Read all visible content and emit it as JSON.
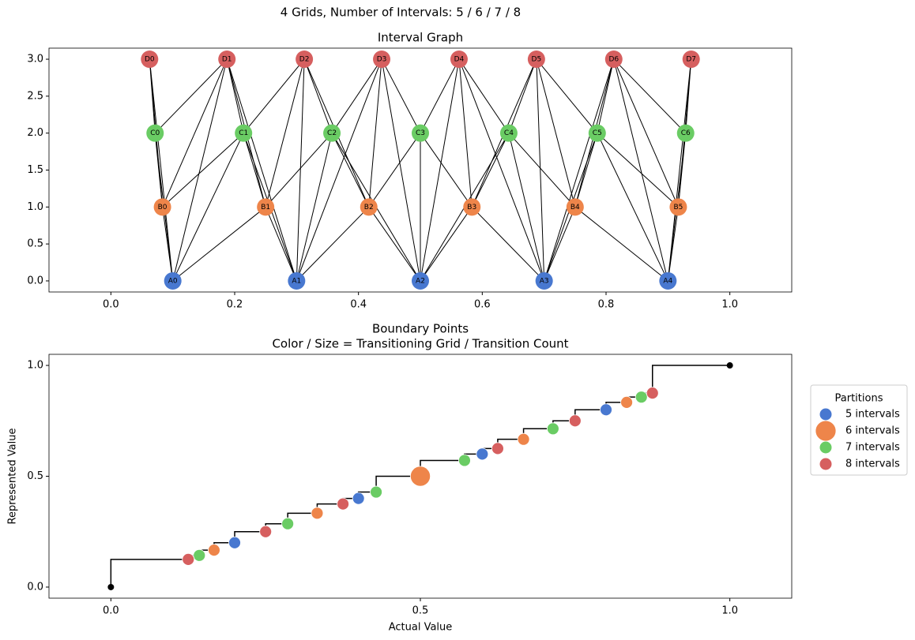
{
  "title": "4 Grids, Number of Intervals: 5 / 6 / 7 / 8",
  "chart_data": [
    {
      "type": "graph",
      "title": "Interval Graph",
      "xlim": [
        -0.1,
        1.1
      ],
      "ylim": [
        -0.15,
        3.15
      ],
      "xticks": [
        {
          "value": 0,
          "label": "0.0"
        },
        0.2,
        0.4,
        0.6,
        0.8,
        {
          "value": 1,
          "label": "1.0"
        }
      ],
      "yticks": [
        {
          "value": 0,
          "label": "0.0"
        },
        0.5,
        {
          "value": 1,
          "label": "1.0"
        },
        1.5,
        {
          "value": 2,
          "label": "2.0"
        },
        2.5,
        {
          "value": 3,
          "label": "3.0"
        }
      ],
      "edge_color": "#000000",
      "layers": [
        {
          "y": 0,
          "color": "#4878d0",
          "labels": [
            "A0",
            "A1",
            "A2",
            "A3",
            "A4"
          ],
          "x": [
            0.1,
            0.3,
            0.5,
            0.7,
            0.9
          ]
        },
        {
          "y": 1,
          "color": "#ee854a",
          "labels": [
            "B0",
            "B1",
            "B2",
            "B3",
            "B4",
            "B5"
          ],
          "x": [
            0.0833,
            0.25,
            0.4167,
            0.5833,
            0.75,
            0.9167
          ]
        },
        {
          "y": 2,
          "color": "#6acc64",
          "labels": [
            "C0",
            "C1",
            "C2",
            "C3",
            "C4",
            "C5",
            "C6"
          ],
          "x": [
            0.0714,
            0.2143,
            0.3571,
            0.5,
            0.6429,
            0.7857,
            0.9286
          ]
        },
        {
          "y": 3,
          "color": "#d65f5f",
          "labels": [
            "D0",
            "D1",
            "D2",
            "D3",
            "D4",
            "D5",
            "D6",
            "D7"
          ],
          "x": [
            0.0625,
            0.1875,
            0.3125,
            0.4375,
            0.5625,
            0.6875,
            0.8125,
            0.9375
          ]
        }
      ]
    },
    {
      "type": "scatter",
      "title": "Boundary Points",
      "subtitle": "Color / Size = Transitioning Grid / Transition Count",
      "x_label": "Actual Value",
      "y_label": "Represented Value",
      "xlim": [
        -0.1,
        1.1
      ],
      "ylim": [
        -0.05,
        1.05
      ],
      "xticks": [
        {
          "value": 0,
          "label": "0.0"
        },
        0.5,
        {
          "value": 1,
          "label": "1.0"
        }
      ],
      "yticks": [
        {
          "value": 0,
          "label": "0.0"
        },
        0.5,
        {
          "value": 1,
          "label": "1.0"
        }
      ],
      "legend_title": "Partitions",
      "legend_position": "right",
      "line": {
        "color": "#000000",
        "x": [
          0,
          0.125,
          0.1429,
          0.1667,
          0.2,
          0.25,
          0.2857,
          0.3333,
          0.375,
          0.4,
          0.4286,
          0.5,
          0.5714,
          0.6,
          0.625,
          0.6667,
          0.7143,
          0.75,
          0.8,
          0.8333,
          0.8571,
          0.875,
          1
        ],
        "y": [
          0,
          0.125,
          0.1429,
          0.1667,
          0.2,
          0.25,
          0.2857,
          0.3333,
          0.375,
          0.4,
          0.4286,
          0.5,
          0.5714,
          0.6,
          0.625,
          0.6667,
          0.7143,
          0.75,
          0.8,
          0.8333,
          0.8571,
          0.875,
          1
        ]
      },
      "series": [
        {
          "name": "5 intervals",
          "color": "#4878d0",
          "x": [
            0.2,
            0.4,
            0.6,
            0.8
          ],
          "values": [
            0.2,
            0.4,
            0.6,
            0.8
          ],
          "sizes": [
            1,
            1,
            1,
            1
          ]
        },
        {
          "name": "6 intervals",
          "color": "#ee854a",
          "x": [
            0.1667,
            0.3333,
            0.5,
            0.6667,
            0.8333
          ],
          "values": [
            0.1667,
            0.3333,
            0.5,
            0.6667,
            0.8333
          ],
          "sizes": [
            1,
            1,
            2,
            1,
            1
          ]
        },
        {
          "name": "7 intervals",
          "color": "#6acc64",
          "x": [
            0.1429,
            0.2857,
            0.4286,
            0.5714,
            0.7143,
            0.8571
          ],
          "values": [
            0.1429,
            0.2857,
            0.4286,
            0.5714,
            0.7143,
            0.8571
          ],
          "sizes": [
            1,
            1,
            1,
            1,
            1,
            1
          ]
        },
        {
          "name": "8 intervals",
          "color": "#d65f5f",
          "x": [
            0.125,
            0.25,
            0.375,
            0.625,
            0.75,
            0.875
          ],
          "values": [
            0.125,
            0.25,
            0.375,
            0.625,
            0.75,
            0.875
          ],
          "sizes": [
            1,
            1,
            1,
            1,
            1,
            1
          ]
        }
      ]
    }
  ]
}
